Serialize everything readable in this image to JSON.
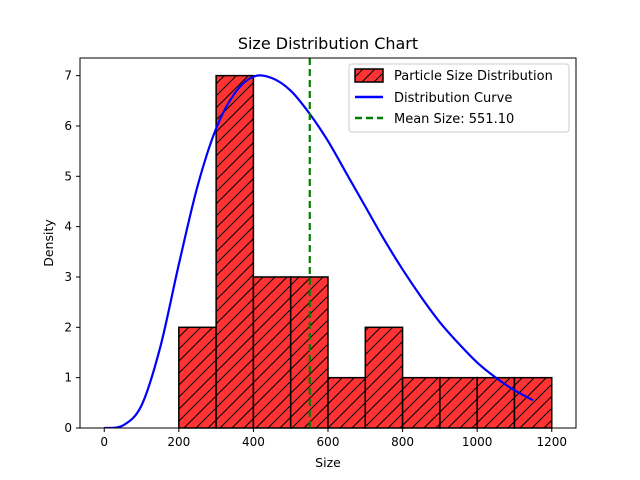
{
  "chart_data": {
    "type": "bar",
    "title": "Size Distribution Chart",
    "xlabel": "Size",
    "ylabel": "Density",
    "xlim": [
      -65,
      1265
    ],
    "ylim": [
      0,
      7.35
    ],
    "x_ticks": [
      0,
      200,
      400,
      600,
      800,
      1000,
      1200
    ],
    "y_ticks": [
      0,
      1,
      2,
      3,
      4,
      5,
      6,
      7
    ],
    "grid": false,
    "legend_position": "top-right",
    "histogram": {
      "name": "Particle Size Distribution",
      "bin_edges": [
        200,
        300,
        400,
        500,
        600,
        700,
        800,
        900,
        1000,
        1100,
        1200
      ],
      "values": [
        2,
        7,
        3,
        3,
        1,
        2,
        1,
        1,
        1,
        1
      ],
      "fill_color": "#ff3333",
      "edge_color": "#000000",
      "hatch": "diagonal"
    },
    "curve": {
      "name": "Distribution Curve",
      "color": "#0000ff",
      "x": [
        0,
        50,
        100,
        150,
        200,
        250,
        300,
        350,
        400,
        450,
        500,
        550,
        600,
        650,
        700,
        750,
        800,
        850,
        900,
        950,
        1000,
        1050,
        1100,
        1150
      ],
      "y": [
        0,
        0.05,
        0.45,
        1.6,
        3.25,
        4.8,
        5.95,
        6.65,
        6.98,
        6.95,
        6.7,
        6.25,
        5.7,
        5.05,
        4.4,
        3.75,
        3.15,
        2.6,
        2.1,
        1.68,
        1.3,
        1.0,
        0.75,
        0.55
      ]
    },
    "mean_line": {
      "name": "Mean Size: 551.10",
      "value": 551.1,
      "color": "#008000",
      "style": "dashed"
    }
  }
}
